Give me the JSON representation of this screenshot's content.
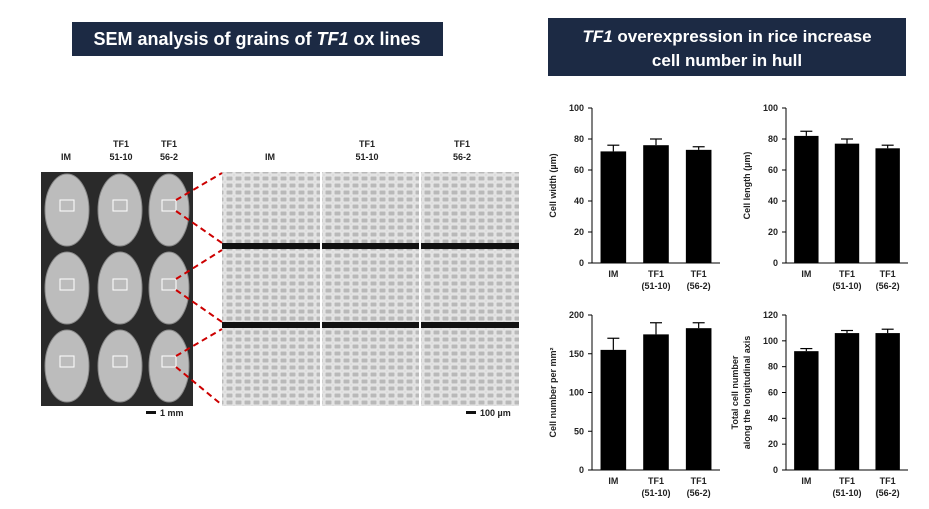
{
  "left_banner": {
    "title": [
      {
        "text": "SEM analysis of grains of "
      },
      {
        "text": "TF1",
        "italic": true
      },
      {
        "text": " ox lines"
      }
    ]
  },
  "right_banner": {
    "lines": [
      [
        {
          "text": "TF1",
          "italic": true
        },
        {
          "text": " overexpression in rice increase"
        }
      ],
      [
        {
          "text": "cell number in hull"
        }
      ]
    ]
  },
  "grain_panel": {
    "columns": [
      [
        "IM"
      ],
      [
        "TF1",
        "51-10"
      ],
      [
        "TF1",
        "56-2"
      ]
    ],
    "scale_bar": "1 mm"
  },
  "sem_panel": {
    "columns": [
      [
        "IM"
      ],
      [
        "TF1",
        "51-10"
      ],
      [
        "TF1",
        "56-2"
      ]
    ],
    "scale_bar": "100 µm"
  },
  "chart_data": [
    {
      "type": "bar",
      "y_label": [
        "Cell width (µm)"
      ],
      "categories": [
        [
          "IM"
        ],
        [
          "TF1",
          "(51-10)"
        ],
        [
          "TF1",
          "(56-2)"
        ]
      ],
      "values": [
        72,
        76,
        73
      ],
      "errors": [
        4,
        4,
        2
      ],
      "color": "#000000",
      "ylim": [
        0,
        100
      ],
      "yticks": [
        0,
        20,
        40,
        60,
        80,
        100
      ]
    },
    {
      "type": "bar",
      "y_label": [
        "Cell length (µm)"
      ],
      "categories": [
        [
          "IM"
        ],
        [
          "TF1",
          "(51-10)"
        ],
        [
          "TF1",
          "(56-2)"
        ]
      ],
      "values": [
        82,
        77,
        74
      ],
      "errors": [
        3,
        3,
        2
      ],
      "color": "#000000",
      "ylim": [
        0,
        100
      ],
      "yticks": [
        0,
        20,
        40,
        60,
        80,
        100
      ]
    },
    {
      "type": "bar",
      "y_label": [
        "Cell number per mm²"
      ],
      "categories": [
        [
          "IM"
        ],
        [
          "TF1",
          "(51-10)"
        ],
        [
          "TF1",
          "(56-2)"
        ]
      ],
      "values": [
        155,
        175,
        183
      ],
      "errors": [
        15,
        15,
        7
      ],
      "color": "#000000",
      "ylim": [
        0,
        200
      ],
      "yticks": [
        0,
        50,
        100,
        150,
        200
      ]
    },
    {
      "type": "bar",
      "y_label": [
        "Total cell number",
        "along the longitudinal axis"
      ],
      "categories": [
        [
          "IM"
        ],
        [
          "TF1",
          "(51-10)"
        ],
        [
          "TF1",
          "(56-2)"
        ]
      ],
      "values": [
        92,
        106,
        106
      ],
      "errors": [
        2,
        2,
        3
      ],
      "color": "#000000",
      "ylim": [
        0,
        120
      ],
      "yticks": [
        0,
        20,
        40,
        60,
        80,
        100,
        120
      ]
    }
  ]
}
